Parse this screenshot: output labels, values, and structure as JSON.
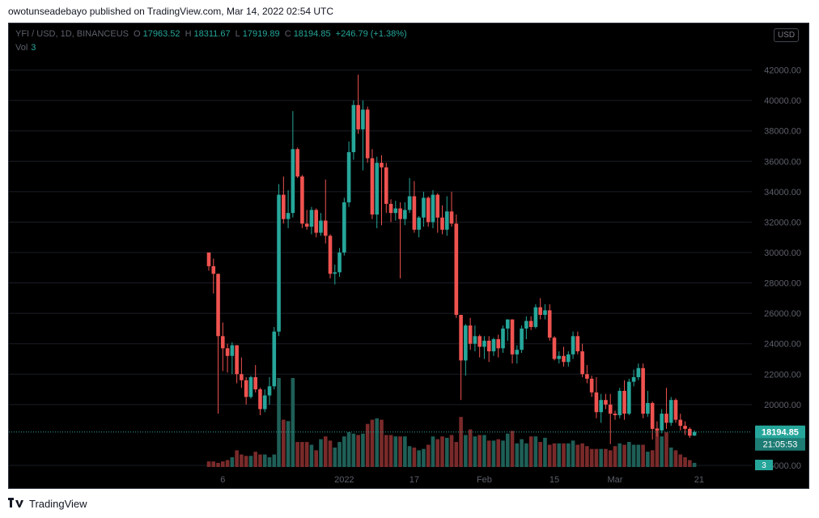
{
  "header": {
    "publish_line": "owotunseadebayo published on TradingView.com, Mar 14, 2022 02:54 UTC"
  },
  "legend": {
    "symbol": "YFI / USD, 1D, BINANCEUS",
    "o_label": "O",
    "open": "17963.52",
    "h_label": "H",
    "high": "18311.67",
    "l_label": "L",
    "low": "17919.89",
    "c_label": "C",
    "close": "18194.85",
    "change": "+246.79 (+1.38%)",
    "vol_label": "Vol",
    "vol_value": "3"
  },
  "currency_button": "USD",
  "price_axis": {
    "ticks": [
      {
        "value": 42000,
        "label": "42000.00"
      },
      {
        "value": 40000,
        "label": "40000.00"
      },
      {
        "value": 38000,
        "label": "38000.00"
      },
      {
        "value": 36000,
        "label": "36000.00"
      },
      {
        "value": 34000,
        "label": "34000.00"
      },
      {
        "value": 32000,
        "label": "32000.00"
      },
      {
        "value": 30000,
        "label": "30000.00"
      },
      {
        "value": 28000,
        "label": "28000.00"
      },
      {
        "value": 26000,
        "label": "26000.00"
      },
      {
        "value": 24000,
        "label": "24000.00"
      },
      {
        "value": 22000,
        "label": "22000.00"
      },
      {
        "value": 20000,
        "label": "20000.00"
      },
      {
        "value": 16000,
        "label": "16000.00"
      }
    ],
    "last_price_label": "18194.85",
    "countdown": "21:05:53",
    "volume_label": "3"
  },
  "time_axis": [
    {
      "index": 3,
      "label": "6"
    },
    {
      "index": 29,
      "label": "2022"
    },
    {
      "index": 44,
      "label": "17"
    },
    {
      "index": 59,
      "label": "Feb"
    },
    {
      "index": 74,
      "label": "15"
    },
    {
      "index": 87,
      "label": "Mar"
    },
    {
      "index": 105,
      "label": "21"
    }
  ],
  "colors": {
    "up": "#26a69a",
    "down": "#ef5350",
    "up_vol": "#1f5f57",
    "down_vol": "#7a2a2a",
    "grid": "#1a1d26",
    "axis_text": "#5d606b"
  },
  "chart_data": {
    "type": "candlestick",
    "symbol": "YFI / USD",
    "interval": "1D",
    "exchange": "BINANCEUS",
    "y_range": [
      15200,
      44000
    ],
    "last_price": 18194.85,
    "candles": [
      {
        "o": 30000,
        "h": 30000,
        "l": 28800,
        "c": 29100
      },
      {
        "o": 29100,
        "h": 29600,
        "l": 27300,
        "c": 28600
      },
      {
        "o": 28600,
        "h": 28600,
        "l": 19400,
        "c": 24500
      },
      {
        "o": 24500,
        "h": 25400,
        "l": 22200,
        "c": 23700
      },
      {
        "o": 23700,
        "h": 24000,
        "l": 22100,
        "c": 23200
      },
      {
        "o": 23200,
        "h": 24100,
        "l": 22000,
        "c": 23900
      },
      {
        "o": 23900,
        "h": 23900,
        "l": 21400,
        "c": 22000
      },
      {
        "o": 22000,
        "h": 23100,
        "l": 21100,
        "c": 21600
      },
      {
        "o": 21600,
        "h": 21800,
        "l": 20000,
        "c": 20500
      },
      {
        "o": 20500,
        "h": 21900,
        "l": 20400,
        "c": 21800
      },
      {
        "o": 21800,
        "h": 22600,
        "l": 20800,
        "c": 21000
      },
      {
        "o": 21000,
        "h": 21100,
        "l": 19300,
        "c": 19700
      },
      {
        "o": 19700,
        "h": 21000,
        "l": 19500,
        "c": 20600
      },
      {
        "o": 20600,
        "h": 21800,
        "l": 20000,
        "c": 21200
      },
      {
        "o": 21200,
        "h": 25100,
        "l": 21000,
        "c": 24800
      },
      {
        "o": 24800,
        "h": 34500,
        "l": 24500,
        "c": 33800
      },
      {
        "o": 33800,
        "h": 35000,
        "l": 31900,
        "c": 32200
      },
      {
        "o": 32200,
        "h": 34100,
        "l": 31600,
        "c": 32600
      },
      {
        "o": 32600,
        "h": 39300,
        "l": 32300,
        "c": 36800
      },
      {
        "o": 36800,
        "h": 36900,
        "l": 34900,
        "c": 35000
      },
      {
        "o": 35000,
        "h": 35100,
        "l": 31600,
        "c": 31900
      },
      {
        "o": 31900,
        "h": 32800,
        "l": 31500,
        "c": 31700
      },
      {
        "o": 31700,
        "h": 33000,
        "l": 31200,
        "c": 32800
      },
      {
        "o": 32800,
        "h": 32900,
        "l": 31000,
        "c": 31300
      },
      {
        "o": 31300,
        "h": 32600,
        "l": 31100,
        "c": 32100
      },
      {
        "o": 32100,
        "h": 34800,
        "l": 30600,
        "c": 31100
      },
      {
        "o": 31100,
        "h": 31200,
        "l": 28300,
        "c": 28600
      },
      {
        "o": 28600,
        "h": 29200,
        "l": 27900,
        "c": 28700
      },
      {
        "o": 28700,
        "h": 30300,
        "l": 28400,
        "c": 30000
      },
      {
        "o": 30000,
        "h": 33600,
        "l": 29800,
        "c": 33300
      },
      {
        "o": 33300,
        "h": 37300,
        "l": 33000,
        "c": 36600
      },
      {
        "o": 36600,
        "h": 40000,
        "l": 36100,
        "c": 39700
      },
      {
        "o": 39700,
        "h": 41700,
        "l": 37800,
        "c": 38100
      },
      {
        "o": 38100,
        "h": 40000,
        "l": 35400,
        "c": 39400
      },
      {
        "o": 39400,
        "h": 39600,
        "l": 35900,
        "c": 36200
      },
      {
        "o": 36200,
        "h": 36800,
        "l": 32200,
        "c": 32500
      },
      {
        "o": 32500,
        "h": 36300,
        "l": 31600,
        "c": 35900
      },
      {
        "o": 35900,
        "h": 36400,
        "l": 31800,
        "c": 35600
      },
      {
        "o": 35600,
        "h": 35900,
        "l": 32600,
        "c": 33200
      },
      {
        "o": 33200,
        "h": 33500,
        "l": 32000,
        "c": 32600
      },
      {
        "o": 32600,
        "h": 33400,
        "l": 32100,
        "c": 32900
      },
      {
        "o": 32900,
        "h": 33300,
        "l": 28300,
        "c": 32200
      },
      {
        "o": 32200,
        "h": 33300,
        "l": 31800,
        "c": 32800
      },
      {
        "o": 32800,
        "h": 34900,
        "l": 32600,
        "c": 33700
      },
      {
        "o": 33700,
        "h": 34700,
        "l": 31300,
        "c": 31500
      },
      {
        "o": 31500,
        "h": 32400,
        "l": 31000,
        "c": 32300
      },
      {
        "o": 32300,
        "h": 34000,
        "l": 31700,
        "c": 33600
      },
      {
        "o": 33600,
        "h": 33700,
        "l": 31700,
        "c": 32000
      },
      {
        "o": 32000,
        "h": 34100,
        "l": 31600,
        "c": 33800
      },
      {
        "o": 33800,
        "h": 33900,
        "l": 31300,
        "c": 32300
      },
      {
        "o": 32300,
        "h": 33100,
        "l": 31200,
        "c": 31500
      },
      {
        "o": 31500,
        "h": 33700,
        "l": 31100,
        "c": 32700
      },
      {
        "o": 32700,
        "h": 34000,
        "l": 31700,
        "c": 31900
      },
      {
        "o": 31900,
        "h": 32500,
        "l": 25700,
        "c": 25900
      },
      {
        "o": 25900,
        "h": 25900,
        "l": 20300,
        "c": 22900
      },
      {
        "o": 22900,
        "h": 25300,
        "l": 21900,
        "c": 25200
      },
      {
        "o": 25200,
        "h": 25700,
        "l": 23600,
        "c": 24000
      },
      {
        "o": 24000,
        "h": 25200,
        "l": 23500,
        "c": 24500
      },
      {
        "o": 24500,
        "h": 24600,
        "l": 23100,
        "c": 23800
      },
      {
        "o": 23800,
        "h": 24500,
        "l": 23000,
        "c": 24200
      },
      {
        "o": 24200,
        "h": 24500,
        "l": 22800,
        "c": 23500
      },
      {
        "o": 23500,
        "h": 24400,
        "l": 23200,
        "c": 24300
      },
      {
        "o": 24300,
        "h": 24600,
        "l": 23100,
        "c": 23700
      },
      {
        "o": 23700,
        "h": 25200,
        "l": 23400,
        "c": 25000
      },
      {
        "o": 25000,
        "h": 25600,
        "l": 24200,
        "c": 25600
      },
      {
        "o": 25600,
        "h": 25600,
        "l": 22700,
        "c": 23300
      },
      {
        "o": 23300,
        "h": 23900,
        "l": 22700,
        "c": 23600
      },
      {
        "o": 23600,
        "h": 25200,
        "l": 23400,
        "c": 25000
      },
      {
        "o": 25000,
        "h": 25800,
        "l": 24300,
        "c": 25500
      },
      {
        "o": 25500,
        "h": 25800,
        "l": 24900,
        "c": 25100
      },
      {
        "o": 25100,
        "h": 26600,
        "l": 25000,
        "c": 26400
      },
      {
        "o": 26400,
        "h": 27000,
        "l": 25600,
        "c": 25900
      },
      {
        "o": 25900,
        "h": 26600,
        "l": 25600,
        "c": 26200
      },
      {
        "o": 26200,
        "h": 26600,
        "l": 24200,
        "c": 24400
      },
      {
        "o": 24400,
        "h": 24500,
        "l": 22900,
        "c": 23000
      },
      {
        "o": 23000,
        "h": 23500,
        "l": 22700,
        "c": 23200
      },
      {
        "o": 23200,
        "h": 23800,
        "l": 22500,
        "c": 22800
      },
      {
        "o": 22800,
        "h": 23500,
        "l": 22500,
        "c": 23300
      },
      {
        "o": 23300,
        "h": 24800,
        "l": 23000,
        "c": 24500
      },
      {
        "o": 24500,
        "h": 24800,
        "l": 23300,
        "c": 23500
      },
      {
        "o": 23500,
        "h": 24000,
        "l": 21800,
        "c": 22000
      },
      {
        "o": 22000,
        "h": 22600,
        "l": 21400,
        "c": 21700
      },
      {
        "o": 21700,
        "h": 21900,
        "l": 20500,
        "c": 20800
      },
      {
        "o": 20800,
        "h": 21800,
        "l": 19100,
        "c": 19500
      },
      {
        "o": 19500,
        "h": 20700,
        "l": 18800,
        "c": 20300
      },
      {
        "o": 20300,
        "h": 20700,
        "l": 19700,
        "c": 20000
      },
      {
        "o": 20000,
        "h": 20700,
        "l": 17400,
        "c": 19400
      },
      {
        "o": 19400,
        "h": 19600,
        "l": 19000,
        "c": 19300
      },
      {
        "o": 19300,
        "h": 21100,
        "l": 19100,
        "c": 20900
      },
      {
        "o": 20900,
        "h": 21600,
        "l": 19000,
        "c": 19400
      },
      {
        "o": 19400,
        "h": 21700,
        "l": 19300,
        "c": 21500
      },
      {
        "o": 21500,
        "h": 22300,
        "l": 21200,
        "c": 21800
      },
      {
        "o": 21800,
        "h": 22700,
        "l": 21600,
        "c": 22400
      },
      {
        "o": 22400,
        "h": 22700,
        "l": 19100,
        "c": 19400
      },
      {
        "o": 19400,
        "h": 20900,
        "l": 19200,
        "c": 20100
      },
      {
        "o": 20100,
        "h": 20200,
        "l": 17700,
        "c": 18400
      },
      {
        "o": 18400,
        "h": 18900,
        "l": 17900,
        "c": 18300
      },
      {
        "o": 18300,
        "h": 19700,
        "l": 18100,
        "c": 19400
      },
      {
        "o": 19400,
        "h": 21100,
        "l": 18400,
        "c": 18800
      },
      {
        "o": 18800,
        "h": 20500,
        "l": 18600,
        "c": 20300
      },
      {
        "o": 20300,
        "h": 20400,
        "l": 18800,
        "c": 19000
      },
      {
        "o": 19000,
        "h": 19400,
        "l": 18300,
        "c": 18600
      },
      {
        "o": 18600,
        "h": 18900,
        "l": 18000,
        "c": 18400
      },
      {
        "o": 18400,
        "h": 18500,
        "l": 17800,
        "c": 17950
      },
      {
        "o": 17963.52,
        "h": 18311.67,
        "l": 17919.89,
        "c": 18194.85
      }
    ],
    "volume": [
      4,
      4,
      3,
      4,
      5,
      7,
      12,
      9,
      8,
      8,
      11,
      9,
      9,
      7,
      9,
      64,
      34,
      33,
      64,
      18,
      18,
      18,
      16,
      12,
      20,
      22,
      19,
      14,
      18,
      22,
      25,
      24,
      23,
      24,
      31,
      34,
      35,
      34,
      23,
      23,
      22,
      22,
      22,
      15,
      14,
      12,
      13,
      16,
      22,
      20,
      22,
      21,
      23,
      18,
      36,
      23,
      27,
      22,
      23,
      23,
      19,
      19,
      20,
      19,
      24,
      26,
      17,
      20,
      17,
      22,
      22,
      18,
      21,
      16,
      17,
      17,
      17,
      17,
      19,
      16,
      17,
      15,
      13,
      13,
      13,
      13,
      12,
      15,
      17,
      16,
      18,
      16,
      16,
      16,
      11,
      12,
      28,
      22,
      25,
      14,
      12,
      9,
      7,
      5,
      3
    ],
    "volume_y_max": 64
  }
}
